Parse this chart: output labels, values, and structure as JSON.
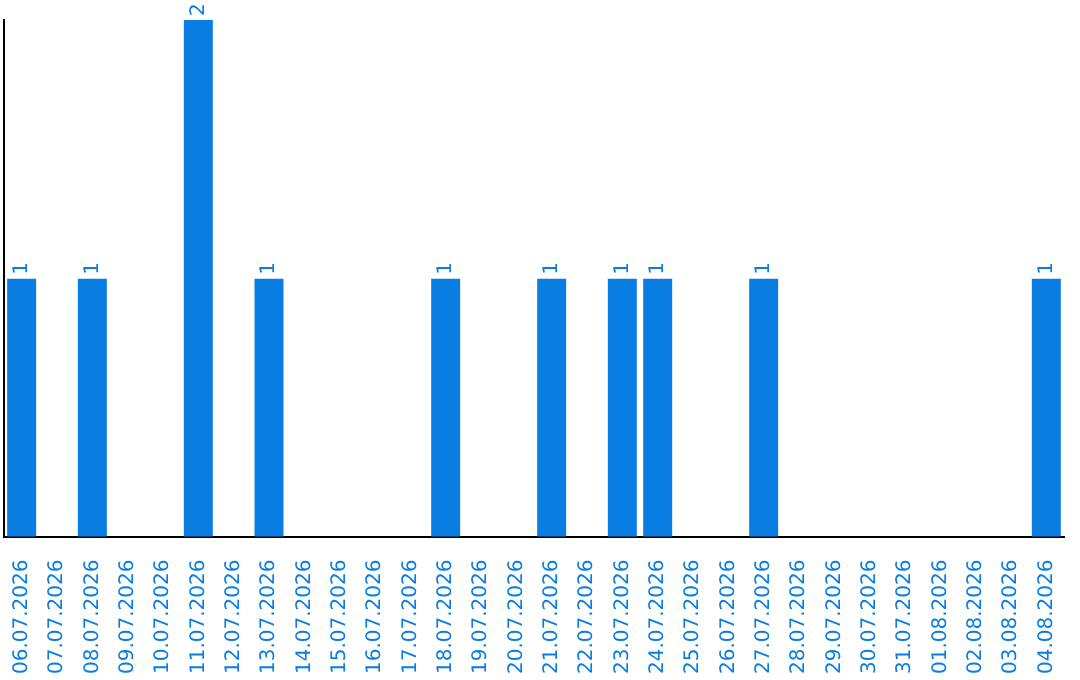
{
  "chart_data": {
    "type": "bar",
    "categories": [
      "06.07.2026",
      "07.07.2026",
      "08.07.2026",
      "09.07.2026",
      "10.07.2026",
      "11.07.2026",
      "12.07.2026",
      "13.07.2026",
      "14.07.2026",
      "15.07.2026",
      "16.07.2026",
      "17.07.2026",
      "18.07.2026",
      "19.07.2026",
      "20.07.2026",
      "21.07.2026",
      "22.07.2026",
      "23.07.2026",
      "24.07.2026",
      "25.07.2026",
      "26.07.2026",
      "27.07.2026",
      "28.07.2026",
      "29.07.2026",
      "30.07.2026",
      "31.07.2026",
      "01.08.2026",
      "02.08.2026",
      "03.08.2026",
      "04.08.2026"
    ],
    "values": [
      1,
      0,
      1,
      0,
      0,
      2,
      0,
      1,
      0,
      0,
      0,
      0,
      1,
      0,
      0,
      1,
      0,
      1,
      1,
      0,
      0,
      1,
      0,
      0,
      0,
      0,
      0,
      0,
      0,
      1
    ],
    "value_labels": [
      "1",
      null,
      "1",
      null,
      null,
      "2",
      null,
      "1",
      null,
      null,
      null,
      null,
      "1",
      null,
      null,
      "1",
      null,
      "1",
      "1",
      null,
      null,
      "1",
      null,
      null,
      null,
      null,
      null,
      null,
      null,
      "1"
    ],
    "color": "#0a7de2",
    "legend": false
  }
}
